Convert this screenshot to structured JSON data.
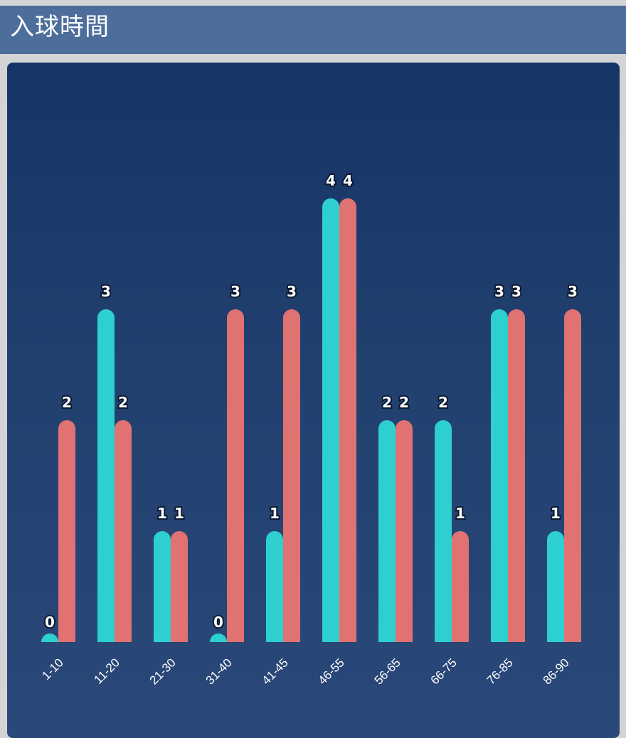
{
  "header": {
    "title": "入球時間"
  },
  "colors": {
    "series_a": "#2dd0cf",
    "series_b": "#e07272"
  },
  "chart_data": {
    "type": "bar",
    "title": "",
    "xlabel": "",
    "ylabel": "",
    "ylim": [
      0,
      4
    ],
    "grid": false,
    "legend": false,
    "categories": [
      "1-10",
      "11-20",
      "21-30",
      "31-40",
      "41-45",
      "46-55",
      "56-65",
      "66-75",
      "76-85",
      "86-90"
    ],
    "series": [
      {
        "values": [
          0,
          3,
          1,
          0,
          1,
          4,
          2,
          2,
          3,
          1
        ],
        "color": "#2dd0cf"
      },
      {
        "values": [
          2,
          2,
          1,
          3,
          3,
          4,
          2,
          1,
          3,
          3
        ],
        "color": "#e07272"
      }
    ]
  }
}
